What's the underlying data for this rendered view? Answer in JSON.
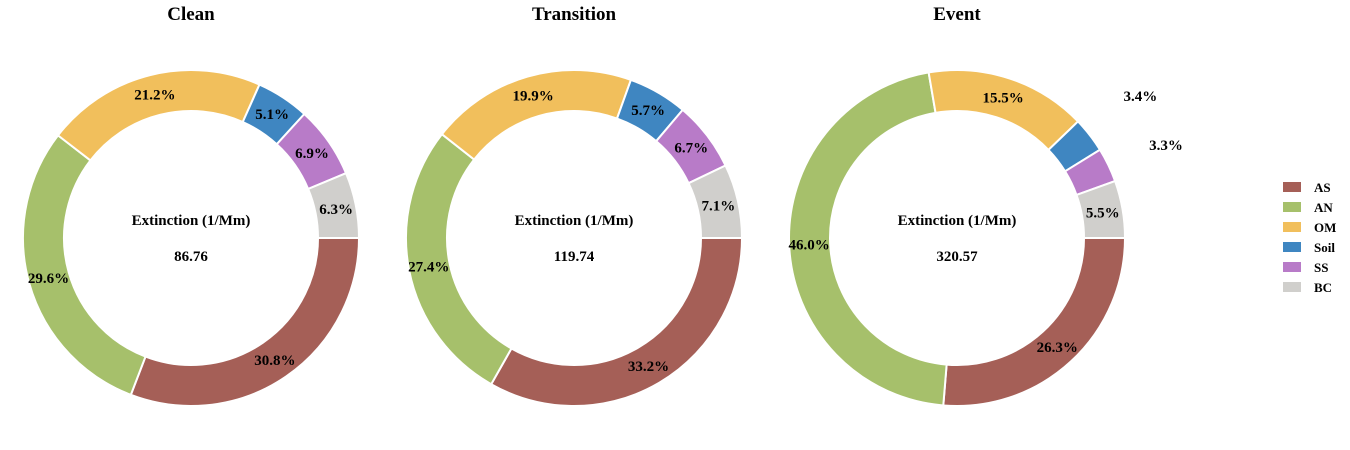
{
  "chart_data": {
    "type": "pie",
    "style": "donut",
    "categories": [
      "AS",
      "AN",
      "OM",
      "Soil",
      "SS",
      "BC"
    ],
    "colors": {
      "AS": "#a55f57",
      "AN": "#a6c06b",
      "OM": "#f1bf5c",
      "Soil": "#3f86c1",
      "SS": "#b87bc8",
      "BC": "#d0cfcc"
    },
    "center_label": "Extinction (1/Mm)",
    "legend_position": "right",
    "charts": [
      {
        "title": "Clean",
        "center_value": "86.76",
        "values": [
          30.8,
          29.6,
          21.2,
          5.1,
          6.9,
          6.3
        ],
        "labels": [
          "30.8%",
          "29.6%",
          "21.2%",
          "5.1%",
          "6.9%",
          "6.3%"
        ]
      },
      {
        "title": "Transition",
        "center_value": "119.74",
        "values": [
          33.2,
          27.4,
          19.9,
          5.7,
          6.7,
          7.1
        ],
        "labels": [
          "33.2%",
          "27.4%",
          "19.9%",
          "5.7%",
          "6.7%",
          "7.1%"
        ]
      },
      {
        "title": "Event",
        "center_value": "320.57",
        "values": [
          26.3,
          46.0,
          15.5,
          3.4,
          3.3,
          5.5
        ],
        "labels": [
          "26.3%",
          "46.0%",
          "15.5%",
          "3.4%",
          "3.3%",
          "5.5%"
        ]
      }
    ]
  }
}
